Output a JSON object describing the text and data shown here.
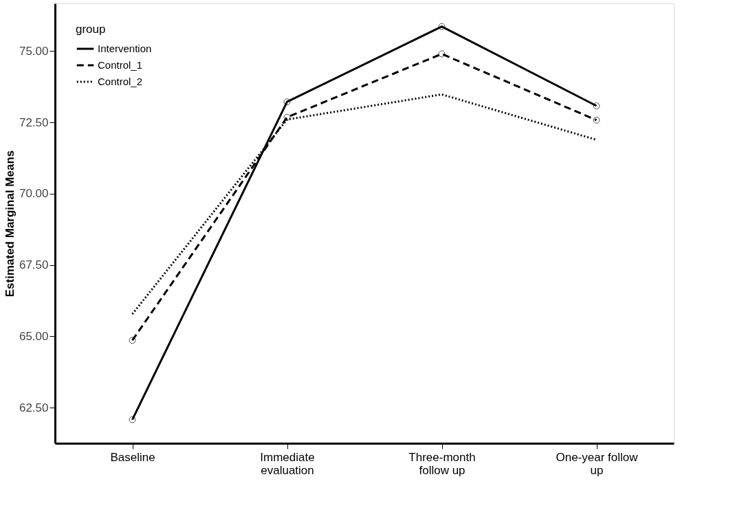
{
  "chart_data": {
    "type": "line",
    "ylabel": "Estimated Marginal Means",
    "legend_title": "group",
    "categories": [
      "Baseline",
      "Immediate evaluation",
      "Three-month follow up",
      "One-year follow up"
    ],
    "series": [
      {
        "name": "Intervention",
        "color": "#000000",
        "line_style": "solid",
        "marker": "circle",
        "values": [
          62.08,
          73.22,
          75.86,
          73.08
        ]
      },
      {
        "name": "Control_1",
        "color": "#000000",
        "line_style": "dashed",
        "marker": "circle",
        "values": [
          64.86,
          72.68,
          74.9,
          72.58
        ]
      },
      {
        "name": "Control_2",
        "color": "#000000",
        "line_style": "dotted",
        "marker": "none",
        "values": [
          65.78,
          72.6,
          73.48,
          71.89
        ]
      }
    ],
    "ylim": [
      61.25,
      76.67
    ],
    "yticks": [
      {
        "value": 62.5,
        "label": "62.50"
      },
      {
        "value": 65,
        "label": "65.00"
      },
      {
        "value": 67.5,
        "label": "67.50"
      },
      {
        "value": 70,
        "label": "70.00"
      },
      {
        "value": 72.5,
        "label": "72.50"
      },
      {
        "value": 75,
        "label": "75.00"
      }
    ],
    "grid": false,
    "legend": "top left"
  }
}
